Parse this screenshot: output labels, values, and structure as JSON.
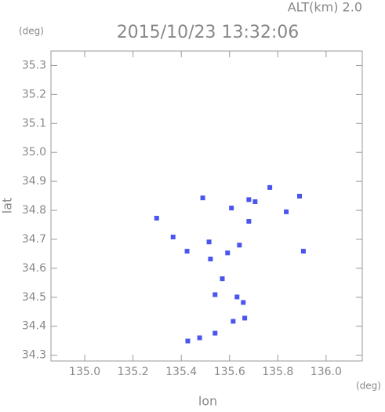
{
  "chart_data": {
    "type": "scatter",
    "title": "2015/10/23 13:32:06",
    "altitude_label": "ALT(km) 2.0",
    "y_unit": "(deg)",
    "x_unit": "(deg)",
    "xlabel": "lon",
    "ylabel": "lat",
    "xlim": [
      134.86,
      136.15
    ],
    "ylim": [
      34.28,
      35.35
    ],
    "xticks": [
      {
        "value": 135.0,
        "label": "135.0"
      },
      135.2,
      135.4,
      135.6,
      135.8,
      {
        "value": 136.0,
        "label": "136.0"
      }
    ],
    "yticks": [
      34.3,
      34.4,
      34.5,
      34.6,
      34.7,
      34.8,
      34.9,
      {
        "value": 35.0,
        "label": "35.0"
      },
      35.1,
      35.2,
      35.3
    ],
    "color": "#4a55ee",
    "x": [
      135.767,
      135.89,
      135.68,
      135.489,
      135.608,
      135.706,
      135.835,
      135.298,
      135.68,
      135.515,
      135.366,
      135.424,
      135.641,
      135.906,
      135.521,
      135.592,
      135.57,
      135.54,
      135.631,
      135.657,
      135.615,
      135.663,
      135.54,
      135.427,
      135.476
    ],
    "values": [
      34.879,
      34.849,
      34.837,
      34.843,
      34.808,
      34.83,
      34.795,
      34.773,
      34.762,
      34.691,
      34.708,
      34.659,
      34.68,
      34.659,
      34.632,
      34.653,
      34.564,
      34.509,
      34.501,
      34.482,
      34.417,
      34.428,
      34.376,
      34.349,
      34.36
    ]
  }
}
